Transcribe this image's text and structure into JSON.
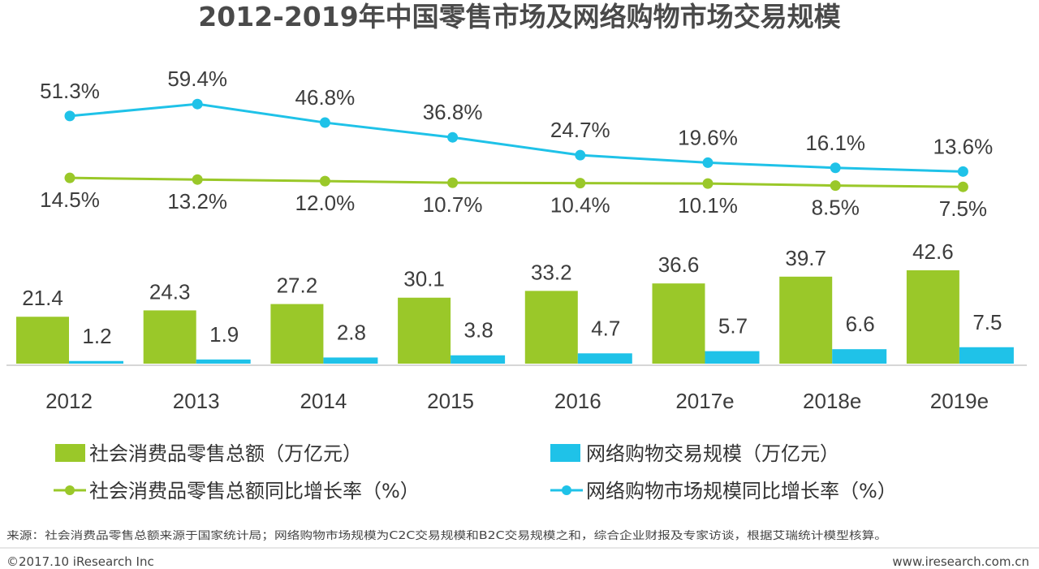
{
  "chart_data": {
    "type": "bar+line",
    "title": "2012-2019年中国零售市场及网络购物市场交易规模",
    "categories": [
      "2012",
      "2013",
      "2014",
      "2015",
      "2016",
      "2017e",
      "2018e",
      "2019e"
    ],
    "bar_series": [
      {
        "name": "社会消费品零售总额（万亿元）",
        "color": "#9ac829",
        "values": [
          21.4,
          24.3,
          27.2,
          30.1,
          33.2,
          36.6,
          39.7,
          42.6
        ]
      },
      {
        "name": "网络购物交易规模（万亿元）",
        "color": "#1fc2e8",
        "values": [
          1.2,
          1.9,
          2.8,
          3.8,
          4.7,
          5.7,
          6.6,
          7.5
        ]
      }
    ],
    "line_series": [
      {
        "name": "社会消费品零售总额同比增长率（%）",
        "color": "#9ac829",
        "values": [
          14.5,
          13.2,
          12.0,
          10.7,
          10.4,
          10.1,
          8.5,
          7.5
        ],
        "labels": [
          "14.5%",
          "13.2%",
          "12.0%",
          "10.7%",
          "10.4%",
          "10.1%",
          "8.5%",
          "7.5%"
        ]
      },
      {
        "name": "网络购物市场规模同比增长率（%）",
        "color": "#1fc2e8",
        "values": [
          51.3,
          59.4,
          46.8,
          36.8,
          24.7,
          19.6,
          16.1,
          13.6
        ],
        "labels": [
          "51.3%",
          "59.4%",
          "46.8%",
          "36.8%",
          "24.7%",
          "19.6%",
          "16.1%",
          "13.6%"
        ]
      }
    ],
    "bar_ylim": [
      0,
      45
    ],
    "line_ylim": [
      0,
      60
    ],
    "legend_position": "bottom"
  },
  "footer": {
    "source": "来源：社会消费品零售总额来源于国家统计局；网络购物市场规模为C2C交易规模和B2C交易规模之和，综合企业财报及专家访谈，根据艾瑞统计模型核算。",
    "copyright": "©2017.10 iResearch Inc",
    "website": "www.iresearch.com.cn"
  },
  "colors": {
    "green": "#9ac829",
    "blue": "#1fc2e8",
    "axis": "#c8c8c8"
  }
}
